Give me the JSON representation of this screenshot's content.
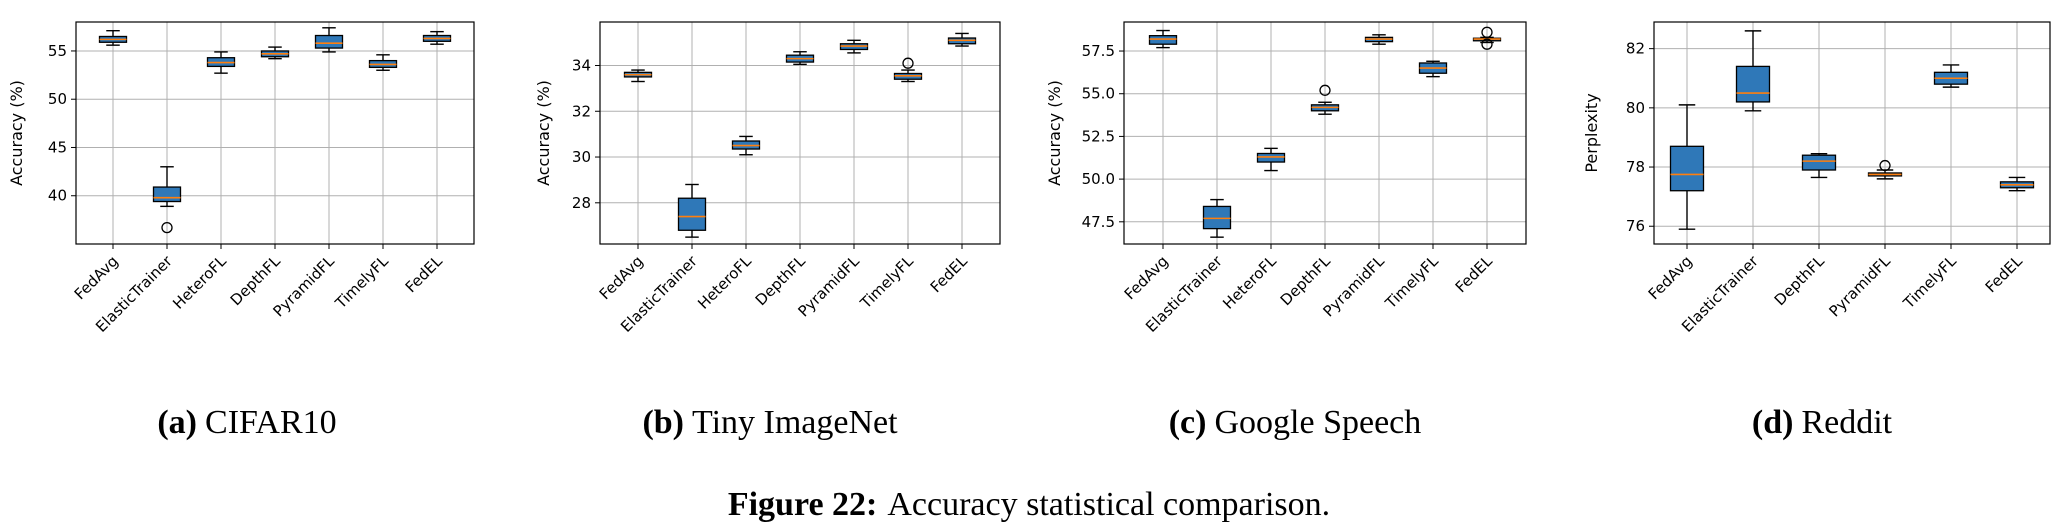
{
  "figure": {
    "label": "Figure 22:",
    "caption": "Accuracy statistical comparison."
  },
  "colors": {
    "box_fill": "#2f78b8",
    "median": "#ff7f0e",
    "grid": "#b0b0b0"
  },
  "chart_data": [
    {
      "type": "box",
      "panel_label": "(a)",
      "subtitle": "CIFAR10",
      "ylabel": "Accuracy (%)",
      "ylim": [
        35,
        58
      ],
      "yticks": [
        40,
        45,
        50,
        55
      ],
      "ytick_labels": [
        "40",
        "45",
        "50",
        "55"
      ],
      "grid": true,
      "categories": [
        "FedAvg",
        "ElasticTrainer",
        "HeteroFL",
        "DepthFL",
        "PyramidFL",
        "TimelyFL",
        "FedEL"
      ],
      "boxes": [
        {
          "min": 55.6,
          "q1": 55.9,
          "median": 56.2,
          "q3": 56.5,
          "max": 57.1,
          "outliers": []
        },
        {
          "min": 38.9,
          "q1": 39.4,
          "median": 39.8,
          "q3": 40.9,
          "max": 43.0,
          "outliers": [
            36.7
          ]
        },
        {
          "min": 52.7,
          "q1": 53.4,
          "median": 53.8,
          "q3": 54.3,
          "max": 54.9,
          "outliers": []
        },
        {
          "min": 54.2,
          "q1": 54.4,
          "median": 54.7,
          "q3": 55.0,
          "max": 55.4,
          "outliers": []
        },
        {
          "min": 54.9,
          "q1": 55.3,
          "median": 55.8,
          "q3": 56.6,
          "max": 57.4,
          "outliers": []
        },
        {
          "min": 53.0,
          "q1": 53.3,
          "median": 53.6,
          "q3": 54.0,
          "max": 54.6,
          "outliers": []
        },
        {
          "min": 55.7,
          "q1": 56.0,
          "median": 56.3,
          "q3": 56.6,
          "max": 57.0,
          "outliers": []
        }
      ]
    },
    {
      "type": "box",
      "panel_label": "(b)",
      "subtitle": "Tiny ImageNet",
      "ylabel": "Accuracy (%)",
      "ylim": [
        26.2,
        35.9
      ],
      "yticks": [
        28,
        30,
        32,
        34
      ],
      "ytick_labels": [
        "28",
        "30",
        "32",
        "34"
      ],
      "grid": true,
      "categories": [
        "FedAvg",
        "ElasticTrainer",
        "HeteroFL",
        "DepthFL",
        "PyramidFL",
        "TimelyFL",
        "FedEL"
      ],
      "boxes": [
        {
          "min": 33.3,
          "q1": 33.5,
          "median": 33.6,
          "q3": 33.7,
          "max": 33.8,
          "outliers": []
        },
        {
          "min": 26.5,
          "q1": 26.8,
          "median": 27.4,
          "q3": 28.2,
          "max": 28.8,
          "outliers": []
        },
        {
          "min": 30.1,
          "q1": 30.35,
          "median": 30.5,
          "q3": 30.7,
          "max": 30.9,
          "outliers": []
        },
        {
          "min": 34.05,
          "q1": 34.15,
          "median": 34.3,
          "q3": 34.45,
          "max": 34.6,
          "outliers": []
        },
        {
          "min": 34.55,
          "q1": 34.7,
          "median": 34.85,
          "q3": 34.95,
          "max": 35.1,
          "outliers": []
        },
        {
          "min": 33.3,
          "q1": 33.4,
          "median": 33.55,
          "q3": 33.65,
          "max": 33.8,
          "outliers": [
            34.1
          ]
        },
        {
          "min": 34.85,
          "q1": 34.95,
          "median": 35.1,
          "q3": 35.2,
          "max": 35.4,
          "outliers": []
        }
      ]
    },
    {
      "type": "box",
      "panel_label": "(c)",
      "subtitle": "Google Speech",
      "ylabel": "Accuracy (%)",
      "ylim": [
        46.2,
        59.2
      ],
      "yticks": [
        47.5,
        50.0,
        52.5,
        55.0,
        57.5
      ],
      "ytick_labels": [
        "47.5",
        "50.0",
        "52.5",
        "55.0",
        "57.5"
      ],
      "grid": true,
      "categories": [
        "FedAvg",
        "ElasticTrainer",
        "HeteroFL",
        "DepthFL",
        "PyramidFL",
        "TimelyFL",
        "FedEL"
      ],
      "boxes": [
        {
          "min": 57.7,
          "q1": 57.9,
          "median": 58.2,
          "q3": 58.4,
          "max": 58.7,
          "outliers": []
        },
        {
          "min": 46.6,
          "q1": 47.1,
          "median": 47.7,
          "q3": 48.4,
          "max": 48.8,
          "outliers": []
        },
        {
          "min": 50.5,
          "q1": 51.0,
          "median": 51.3,
          "q3": 51.5,
          "max": 51.8,
          "outliers": []
        },
        {
          "min": 53.8,
          "q1": 54.0,
          "median": 54.2,
          "q3": 54.35,
          "max": 54.5,
          "outliers": [
            55.2
          ]
        },
        {
          "min": 57.9,
          "q1": 58.05,
          "median": 58.2,
          "q3": 58.3,
          "max": 58.45,
          "outliers": []
        },
        {
          "min": 56.0,
          "q1": 56.2,
          "median": 56.5,
          "q3": 56.8,
          "max": 56.9,
          "outliers": []
        },
        {
          "min": 58.0,
          "q1": 58.1,
          "median": 58.2,
          "q3": 58.25,
          "max": 58.3,
          "outliers": [
            58.6,
            57.9
          ]
        }
      ]
    },
    {
      "type": "box",
      "panel_label": "(d)",
      "subtitle": "Reddit",
      "ylabel": "Perplexity",
      "ylim": [
        75.4,
        82.9
      ],
      "yticks": [
        76,
        78,
        80,
        82
      ],
      "ytick_labels": [
        "76",
        "78",
        "80",
        "82"
      ],
      "grid": true,
      "categories": [
        "FedAvg",
        "ElasticTrainer",
        "DepthFL",
        "PyramidFL",
        "TimelyFL",
        "FedEL"
      ],
      "boxes": [
        {
          "min": 75.9,
          "q1": 77.2,
          "median": 77.75,
          "q3": 78.7,
          "max": 80.1,
          "outliers": []
        },
        {
          "min": 79.9,
          "q1": 80.2,
          "median": 80.5,
          "q3": 81.4,
          "max": 82.6,
          "outliers": []
        },
        {
          "min": 77.65,
          "q1": 77.9,
          "median": 78.2,
          "q3": 78.4,
          "max": 78.45,
          "outliers": []
        },
        {
          "min": 77.6,
          "q1": 77.7,
          "median": 77.75,
          "q3": 77.8,
          "max": 77.9,
          "outliers": [
            78.05
          ]
        },
        {
          "min": 80.7,
          "q1": 80.8,
          "median": 81.0,
          "q3": 81.2,
          "max": 81.45,
          "outliers": []
        },
        {
          "min": 77.2,
          "q1": 77.3,
          "median": 77.4,
          "q3": 77.5,
          "max": 77.65,
          "outliers": []
        }
      ]
    }
  ]
}
